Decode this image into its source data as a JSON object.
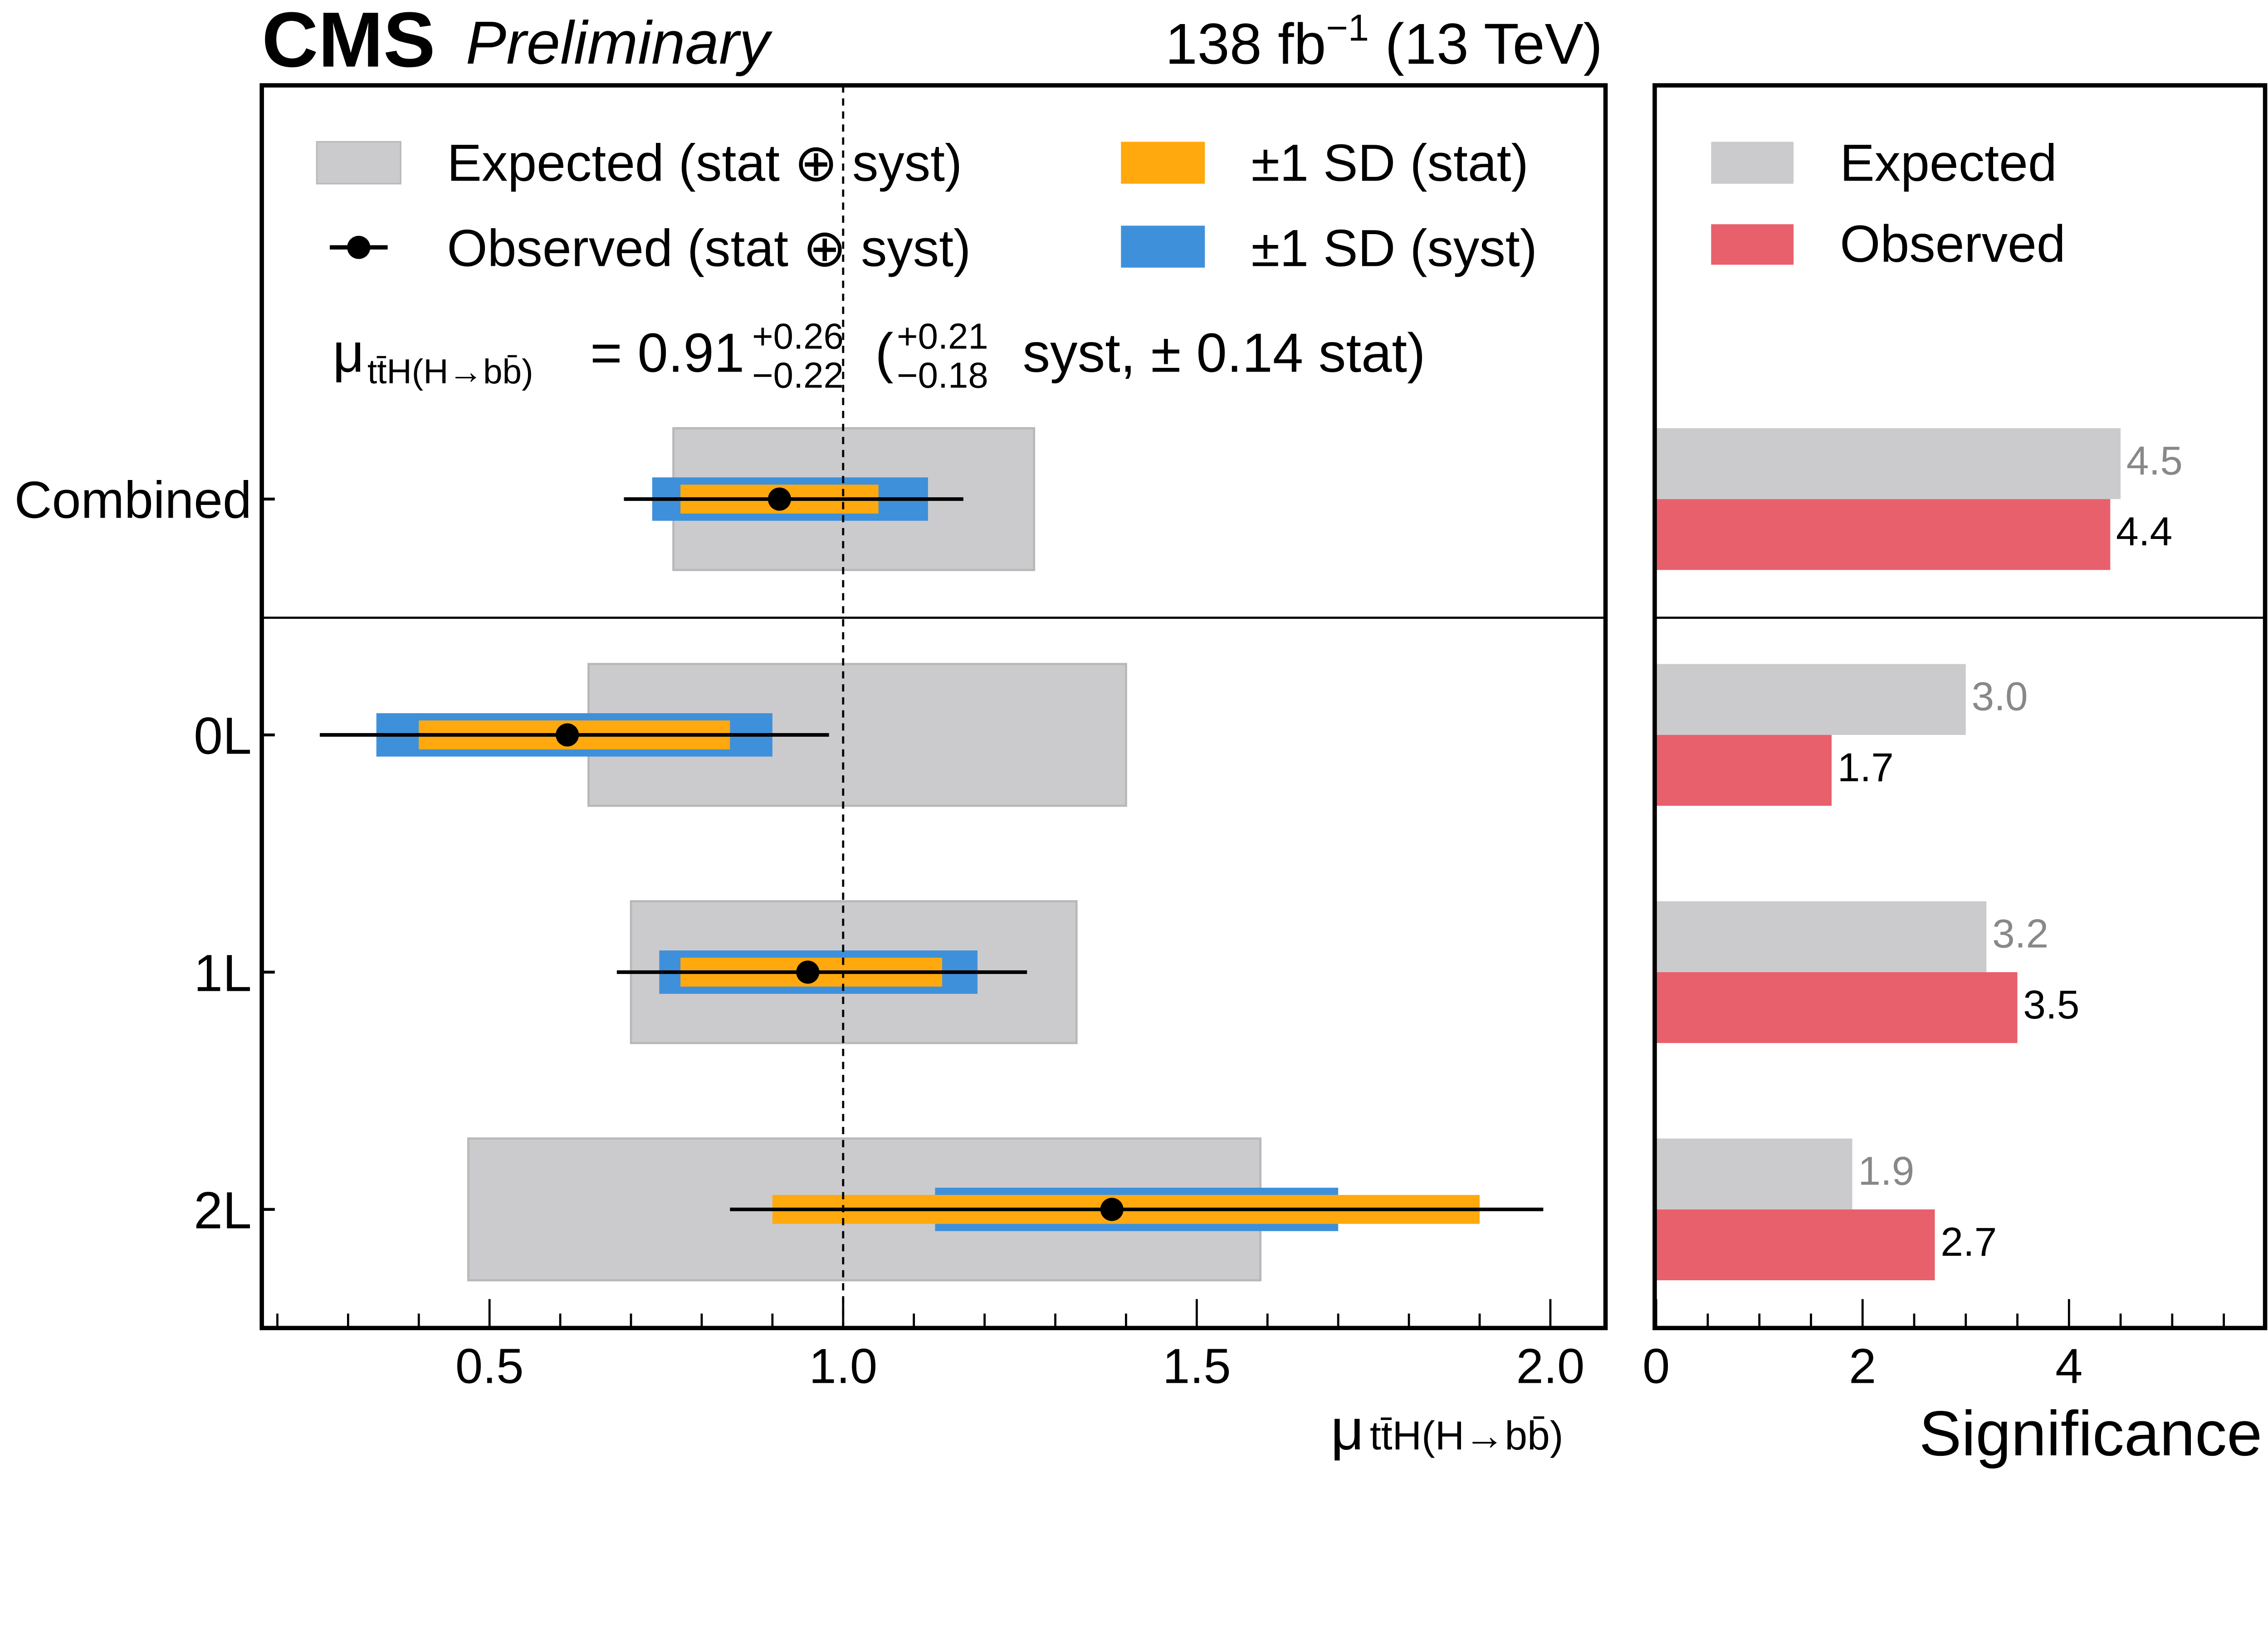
{
  "header": {
    "experiment": "CMS",
    "status": "Preliminary",
    "lumi": "138 fb",
    "lumi_sup": "−1",
    "energy": " (13 TeV)"
  },
  "legend_left": {
    "expected": "Expected (stat ⊕ syst)",
    "observed": "Observed (stat ⊕ syst)",
    "stat": "±1 SD (stat)",
    "syst": "±1 SD (syst)"
  },
  "legend_right": {
    "expected": "Expected",
    "observed": "Observed"
  },
  "formula": {
    "mu": "μ",
    "sub": "tt̄H(H→bb̄)",
    "eq": "= 0.91",
    "tot_up": "+0.26",
    "tot_dn": "−0.22",
    "open": "(",
    "syst_up": "+0.21",
    "syst_dn": "−0.18",
    "rest": "syst, ± 0.14 stat)"
  },
  "colors": {
    "expected": "#cbcbcd",
    "stat": "#ffa90e",
    "syst": "#3f90da",
    "observed_sig": "#e8606b",
    "expected_label": "#888888"
  },
  "chart_data": [
    {
      "type": "bar",
      "orientation": "horizontal",
      "xlabel_mu": "μ",
      "xlabel_sub": "tt̄H(H→bb̄)",
      "xlim": [
        0.178,
        2.078
      ],
      "xticks": [
        0.5,
        1.0,
        1.5,
        2.0
      ],
      "xtick_labels": [
        "0.5",
        "1.0",
        "1.5",
        "2.0"
      ],
      "reference_line": 1.0,
      "categories": [
        "Combined",
        "0L",
        "1L",
        "2L"
      ],
      "observed": [
        0.91,
        0.61,
        0.95,
        1.38
      ],
      "total_interval": [
        [
          0.69,
          1.17
        ],
        [
          0.26,
          0.98
        ],
        [
          0.68,
          1.26
        ],
        [
          0.84,
          1.99
        ]
      ],
      "stat_interval": [
        [
          0.77,
          1.05
        ],
        [
          0.4,
          0.84
        ],
        [
          0.77,
          1.14
        ],
        [
          0.9,
          1.9
        ]
      ],
      "syst_interval": [
        [
          0.73,
          1.12
        ],
        [
          0.34,
          0.9
        ],
        [
          0.74,
          1.19
        ],
        [
          1.13,
          1.7
        ]
      ],
      "expected_interval": [
        [
          0.76,
          1.27
        ],
        [
          0.64,
          1.4
        ],
        [
          0.7,
          1.33
        ],
        [
          0.47,
          1.59
        ]
      ]
    },
    {
      "type": "bar",
      "orientation": "horizontal",
      "xlabel": "Significance",
      "xlim": [
        0,
        5.9
      ],
      "xticks": [
        0,
        2,
        4
      ],
      "xtick_labels": [
        "0",
        "2",
        "4"
      ],
      "categories": [
        "Combined",
        "0L",
        "1L",
        "2L"
      ],
      "series": [
        {
          "name": "Expected",
          "values": [
            4.5,
            3.0,
            3.2,
            1.9
          ],
          "labels": [
            "4.5",
            "3.0",
            "3.2",
            "1.9"
          ]
        },
        {
          "name": "Observed",
          "values": [
            4.4,
            1.7,
            3.5,
            2.7
          ],
          "labels": [
            "4.4",
            "1.7",
            "3.5",
            "2.7"
          ]
        }
      ]
    }
  ]
}
